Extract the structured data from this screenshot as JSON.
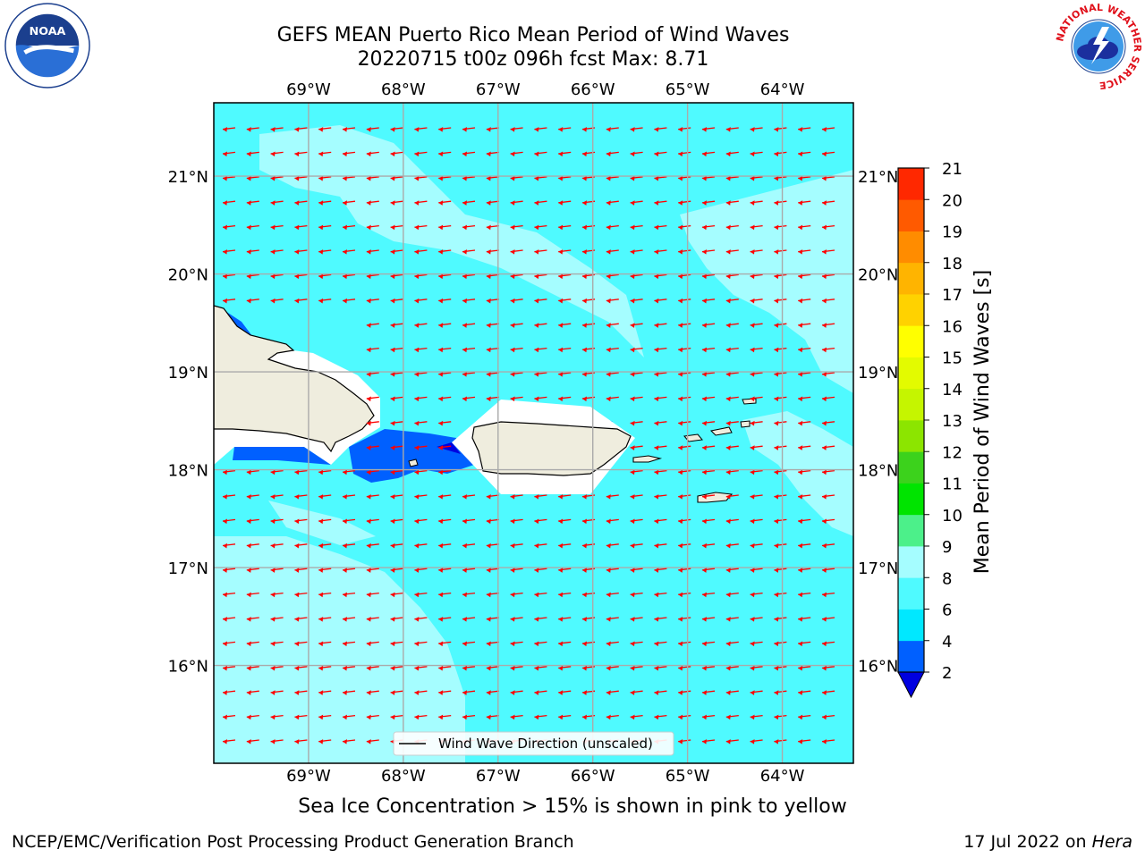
{
  "title_line1": "GEFS MEAN Puerto Rico Mean Period of Wind Waves",
  "title_line2": "20220715 t00z 096h fcst   Max: 8.71",
  "map": {
    "lon_labels": [
      "69°W",
      "68°W",
      "67°W",
      "66°W",
      "65°W",
      "64°W"
    ],
    "lon_values": [
      -69,
      -68,
      -67,
      -66,
      -65,
      -64
    ],
    "lat_labels": [
      "21°N",
      "20°N",
      "19°N",
      "18°N",
      "17°N",
      "16°N"
    ],
    "lat_values": [
      21,
      20,
      19,
      18,
      17,
      16
    ],
    "lon_range": [
      -70.0,
      -63.25
    ],
    "lat_range": [
      15.0,
      21.75
    ],
    "grid": true,
    "legend_label": "Wind Wave Direction (unscaled)",
    "legend_position": "bottom-center",
    "vector_color": "#ff0000",
    "land_color": "#efedde"
  },
  "colorbar": {
    "label": "Mean Period of Wind Waves [s]",
    "ticks": [
      "2",
      "4",
      "6",
      "8",
      "9",
      "10",
      "11",
      "12",
      "13",
      "14",
      "15",
      "16",
      "17",
      "18",
      "19",
      "20",
      "21"
    ],
    "colors": [
      "#0060ff",
      "#00e8ff",
      "#4ffaff",
      "#a5fdff",
      "#4cf08a",
      "#00e400",
      "#3cd21c",
      "#8ce500",
      "#c5f500",
      "#e3fb00",
      "#ffff00",
      "#ffd200",
      "#ffb400",
      "#ff8c00",
      "#ff5a00",
      "#ff2800"
    ],
    "under_color": "#0000e0"
  },
  "subnote": "Sea Ice Concentration > 15% is shown in pink to yellow",
  "footer_left": "NCEP/EMC/Verification Post Processing Product Generation Branch",
  "footer_date": "17 Jul 2022 on ",
  "footer_machine": "Hera",
  "logos": {
    "noaa_text": "NOAA",
    "nws_ring_text": "NATIONAL WEATHER SERVICE"
  }
}
